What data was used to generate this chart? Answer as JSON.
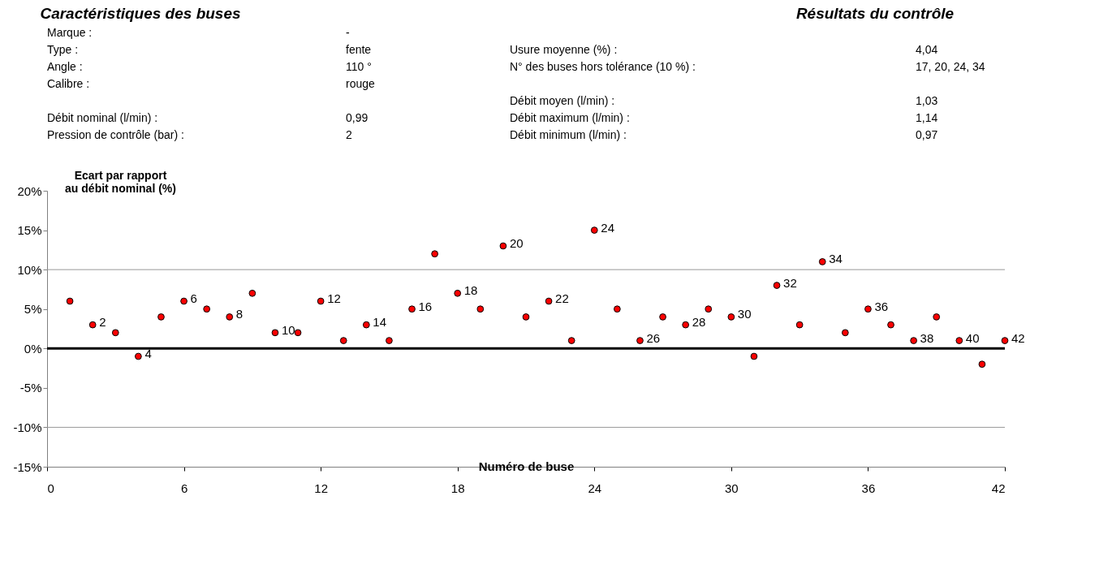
{
  "chart_data": [
    {
      "type": "other",
      "title": "Caractéristiques des buses",
      "annotations": [
        "Marque :",
        "-",
        "Type :",
        "fente",
        "Angle :",
        "110 °",
        "Calibre :",
        "rouge",
        "Débit nominal (l/min) :",
        "0,99",
        "Pression de contrôle (bar) :",
        "2"
      ]
    },
    {
      "type": "other",
      "title": "Résultats du contrôle",
      "annotations": [
        "Usure moyenne  (%) :",
        "4,04",
        "N° des buses hors tolérance (10 %) :",
        "17, 20, 24, 34",
        "Débit moyen (l/min) :",
        "1,03",
        "Débit maximum (l/min) :",
        "1,14",
        "Débit minimum (l/min) :",
        "0,97"
      ]
    },
    {
      "type": "scatter",
      "ylabel": "Ecart par rapport\nau débit nominal (%)",
      "xlabel": "Numéro de buse",
      "x": [
        1,
        2,
        3,
        4,
        5,
        6,
        7,
        8,
        9,
        10,
        11,
        12,
        13,
        14,
        15,
        16,
        17,
        18,
        19,
        20,
        21,
        22,
        23,
        24,
        25,
        26,
        27,
        28,
        29,
        30,
        31,
        32,
        33,
        34,
        35,
        36,
        37,
        38,
        39,
        40,
        41,
        42
      ],
      "series": [
        {
          "color": "#ff0000",
          "values": [
            6,
            3,
            2,
            -1,
            4,
            6,
            5,
            4,
            7,
            2,
            2,
            6,
            1,
            3,
            1,
            5,
            12,
            7,
            5,
            13,
            4,
            6,
            1,
            15,
            5,
            1,
            4,
            3,
            5,
            4,
            -1,
            8,
            3,
            11,
            2,
            5,
            3,
            1,
            4,
            1,
            -2,
            1
          ],
          "name": null
        }
      ],
      "annotations": [
        {
          "text": "2",
          "x": 2,
          "y": 3
        },
        {
          "text": "4",
          "x": 4,
          "y": -1
        },
        {
          "text": "6",
          "x": 6,
          "y": 6
        },
        {
          "text": "8",
          "x": 8,
          "y": 4
        },
        {
          "text": "10",
          "x": 10,
          "y": 2
        },
        {
          "text": "12",
          "x": 12,
          "y": 6
        },
        {
          "text": "14",
          "x": 14,
          "y": 3
        },
        {
          "text": "16",
          "x": 16,
          "y": 5
        },
        {
          "text": "18",
          "x": 18,
          "y": 7
        },
        {
          "text": "20",
          "x": 20,
          "y": 13
        },
        {
          "text": "22",
          "x": 22,
          "y": 6
        },
        {
          "text": "24",
          "x": 24,
          "y": 15
        },
        {
          "text": "26",
          "x": 26,
          "y": 1
        },
        {
          "text": "28",
          "x": 28,
          "y": 3
        },
        {
          "text": "30",
          "x": 30,
          "y": 4
        },
        {
          "text": "32",
          "x": 32,
          "y": 8
        },
        {
          "text": "34",
          "x": 34,
          "y": 11
        },
        {
          "text": "36",
          "x": 36,
          "y": 5
        },
        {
          "text": "38",
          "x": 38,
          "y": 1
        },
        {
          "text": "40",
          "x": 40,
          "y": 1
        },
        {
          "text": "42",
          "x": 42,
          "y": 1
        }
      ],
      "marker": "circle",
      "xlim": [
        0,
        42
      ],
      "xticks": [
        0,
        6,
        12,
        18,
        24,
        30,
        36,
        42
      ],
      "ylim": [
        -15,
        20
      ],
      "yticks": [
        {
          "value": -15,
          "label": "-15%"
        },
        {
          "value": -10,
          "label": "-10%"
        },
        {
          "value": -5,
          "label": "-5%"
        },
        {
          "value": 0,
          "label": "0%"
        },
        {
          "value": 5,
          "label": "5%"
        },
        {
          "value": 10,
          "label": "10%"
        },
        {
          "value": 15,
          "label": "15%"
        },
        {
          "value": 20,
          "label": "20%"
        }
      ],
      "ref_lines": [
        {
          "axis": "y",
          "value": 10,
          "color": "#999999"
        },
        {
          "axis": "y",
          "value": -10,
          "color": "#999999"
        },
        {
          "axis": "y",
          "value": 0,
          "color": "#000000"
        }
      ],
      "grid": false,
      "legend": false
    }
  ]
}
